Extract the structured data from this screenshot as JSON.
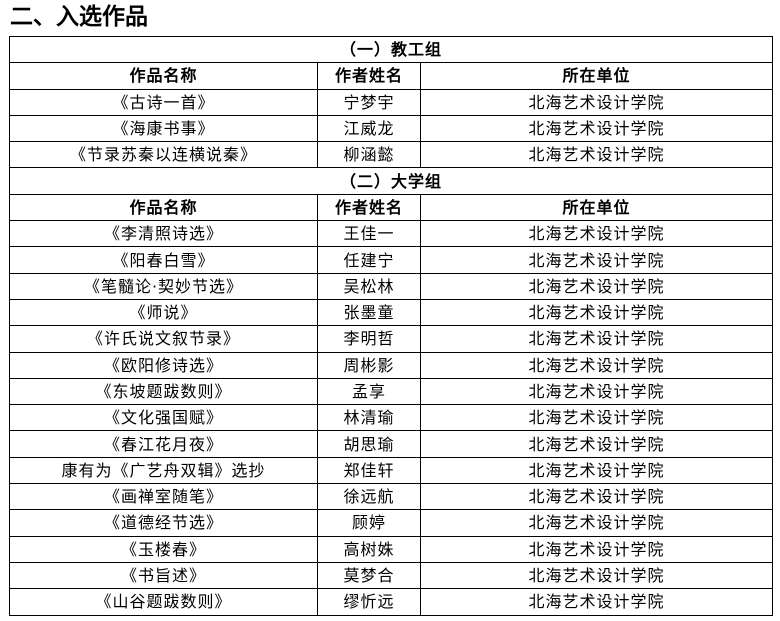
{
  "title": "二、入选作品",
  "columns": [
    "作品名称",
    "作者姓名",
    "所在单位"
  ],
  "groups": [
    {
      "name": "（一）教工组",
      "rows": [
        [
          "《古诗一首》",
          "宁梦宇",
          "北海艺术设计学院"
        ],
        [
          "《海康书事》",
          "江威龙",
          "北海艺术设计学院"
        ],
        [
          "《节录苏秦以连横说秦》",
          "柳涵懿",
          "北海艺术设计学院"
        ]
      ]
    },
    {
      "name": "（二）大学组",
      "rows": [
        [
          "《李清照诗选》",
          "王佳一",
          "北海艺术设计学院"
        ],
        [
          "《阳春白雪》",
          "任建宁",
          "北海艺术设计学院"
        ],
        [
          "《笔髓论·契妙节选》",
          "吴松林",
          "北海艺术设计学院"
        ],
        [
          "《师说》",
          "张墨童",
          "北海艺术设计学院"
        ],
        [
          "《许氏说文叙节录》",
          "李明哲",
          "北海艺术设计学院"
        ],
        [
          "《欧阳修诗选》",
          "周彬影",
          "北海艺术设计学院"
        ],
        [
          "《东坡题跋数则》",
          "孟享",
          "北海艺术设计学院"
        ],
        [
          "《文化强国赋》",
          "林清瑜",
          "北海艺术设计学院"
        ],
        [
          "《春江花月夜》",
          "胡思瑜",
          "北海艺术设计学院"
        ],
        [
          "康有为《广艺舟双辑》选抄",
          "郑佳轩",
          "北海艺术设计学院"
        ],
        [
          "《画禅室随笔》",
          "徐远航",
          "北海艺术设计学院"
        ],
        [
          "《道德经节选》",
          "顾婷",
          "北海艺术设计学院"
        ],
        [
          "《玉楼春》",
          "高树姝",
          "北海艺术设计学院"
        ],
        [
          "《书旨述》",
          "莫梦合",
          "北海艺术设计学院"
        ],
        [
          "《山谷题跋数则》",
          "缪忻远",
          "北海艺术设计学院"
        ]
      ]
    }
  ]
}
